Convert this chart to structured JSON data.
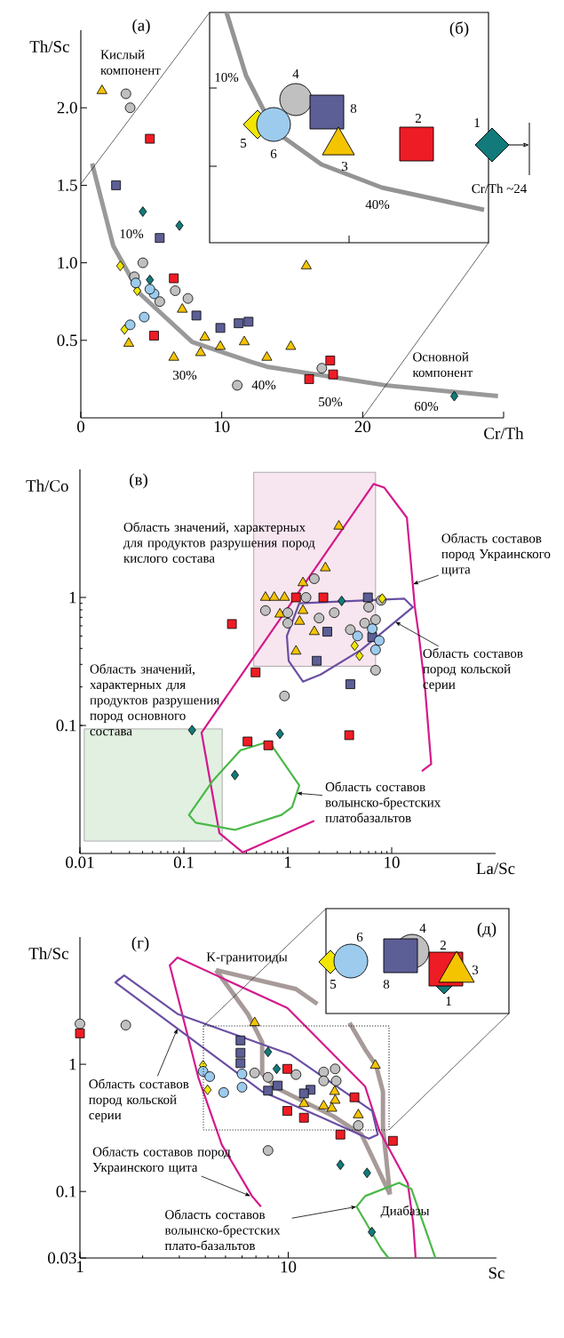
{
  "chart_data": [
    {
      "type": "scatter",
      "title": "(а)",
      "xlabel": "Cr/Th",
      "ylabel": "Th/Sc",
      "xlim": [
        0,
        30
      ],
      "ylim": [
        0,
        2.5
      ],
      "xticks": [
        0,
        10,
        20,
        {
          "value": 30,
          "label": null
        }
      ],
      "yticks": [
        0.5,
        {
          "value": 1,
          "label": "1.0"
        },
        1.5,
        {
          "value": 2,
          "label": "2.0"
        }
      ],
      "series": [
        {
          "type": "line",
          "color": "#999999",
          "x": [
            0.8,
            2.3,
            4.2,
            7.9,
            12.1,
            13.2,
            21.6,
            29.6
          ],
          "values": [
            1.64,
            1.11,
            0.8,
            0.49,
            0.36,
            0.33,
            0.21,
            0.14
          ]
        },
        {
          "marker": "triangle",
          "color": "#f5c400",
          "x": [
            1.5,
            3.4,
            6.6,
            8.5,
            8.8,
            9.9,
            11.6,
            13.2,
            7.2,
            16.0,
            14.9
          ],
          "values": [
            2.11,
            0.48,
            0.39,
            0.42,
            0.52,
            0.46,
            0.49,
            0.39,
            0.7,
            0.98,
            0.46
          ]
        },
        {
          "marker": "circle",
          "color": "#c0c0c0",
          "x": [
            3.2,
            3.5,
            4.4,
            3.8,
            6.7,
            7.6,
            5.6,
            11.1,
            17.1
          ],
          "values": [
            2.09,
            2.0,
            1.0,
            0.91,
            0.82,
            0.77,
            0.75,
            0.21,
            0.32
          ]
        },
        {
          "marker": "square",
          "color": "#ee1c24",
          "x": [
            4.9,
            6.6,
            5.2,
            17.7,
            17.9,
            16.2
          ],
          "values": [
            1.8,
            0.9,
            0.53,
            0.37,
            0.28,
            0.25
          ]
        },
        {
          "marker": "square",
          "color": "#5c5e96",
          "x": [
            2.5,
            5.6,
            8.2,
            9.9,
            11.2,
            11.9
          ],
          "values": [
            1.5,
            1.16,
            0.66,
            0.58,
            0.61,
            0.62
          ]
        },
        {
          "marker": "diamond",
          "color": "#127a7a",
          "x": [
            4.4,
            7.0,
            4.9,
            26.5
          ],
          "values": [
            1.33,
            1.24,
            0.89,
            0.14
          ]
        },
        {
          "marker": "diamond",
          "color": "#f2e600",
          "x": [
            2.8,
            4.0,
            3.1
          ],
          "values": [
            0.98,
            0.82,
            0.57
          ]
        },
        {
          "marker": "circle",
          "color": "#9ccbed",
          "x": [
            3.9,
            5.2,
            4.9,
            4.5,
            3.5
          ],
          "values": [
            0.87,
            0.8,
            0.83,
            0.65,
            0.6
          ]
        }
      ],
      "annotations": [
        "Кислый компонент",
        "Основной компонент",
        "10%",
        "30%",
        "40%",
        "50%",
        "60%"
      ]
    },
    {
      "type": "other",
      "title": "(б)",
      "annotations": [
        "1",
        "2",
        "3",
        "4",
        "5",
        "6",
        "8",
        "10%",
        "40%",
        "Cr/Th ~24"
      ]
    },
    {
      "type": "scatter",
      "title": "(в)",
      "xlabel": "La/Sc",
      "ylabel": "Th/Co",
      "log": "xy",
      "xlim": [
        0.01,
        100
      ],
      "ylim": [
        0.01,
        10
      ],
      "xticks": [
        0.01,
        0.1,
        1,
        10
      ],
      "yticks": [
        0.1,
        1
      ],
      "series": [
        {
          "type": "area",
          "color": "#f7e6ef",
          "x": [
            0.47,
            7.0,
            7.0,
            0.47,
            0.47
          ],
          "values": [
            0.29,
            0.29,
            9.5,
            9.5,
            0.29
          ]
        },
        {
          "type": "area",
          "color": "#e2f0e2",
          "x": [
            0.011,
            0.234,
            0.234,
            0.011,
            0.011
          ],
          "values": [
            0.0125,
            0.0125,
            0.094,
            0.094,
            0.0125
          ]
        },
        {
          "type": "line",
          "color": "#d4198c",
          "x": [
            1.8,
            0.37,
            0.22,
            0.148,
            6.7,
            8.5,
            14,
            16.7,
            18.3,
            21,
            24,
            19.5
          ],
          "values": [
            0.018,
            0.0102,
            0.0144,
            0.088,
            7.7,
            7.2,
            4.2,
            0.84,
            0.5,
            0.19,
            0.05,
            0.044
          ]
        },
        {
          "type": "line",
          "color": "#6a4fa3",
          "x": [
            1.29,
            13.2,
            16,
            5.1,
            2.07,
            1.4,
            1.02,
            0.98,
            1.29,
            1.6
          ],
          "values": [
            0.9,
            0.98,
            0.84,
            0.39,
            0.25,
            0.22,
            0.32,
            0.5,
            0.9,
            0.905
          ]
        },
        {
          "type": "line",
          "color": "#4bb848",
          "x": [
            0.35,
            0.66,
            1.29,
            1.1,
            0.87,
            0.31,
            0.13,
            0.112,
            0.19,
            0.35,
            0.4
          ],
          "values": [
            0.064,
            0.075,
            0.034,
            0.023,
            0.02,
            0.0153,
            0.0174,
            0.02,
            0.037,
            0.064,
            0.066
          ]
        },
        {
          "marker": "triangle",
          "color": "#f5c400",
          "x": [
            3.1,
            2.3,
            1.4,
            0.61,
            0.74,
            0.93,
            1.4,
            1.3,
            1.8,
            1.2,
            0.84
          ],
          "values": [
            3.6,
            1.7,
            1.3,
            1.0,
            1.0,
            1.0,
            0.79,
            0.65,
            0.54,
            0.38,
            0.74
          ]
        },
        {
          "marker": "circle",
          "color": "#c0c0c0",
          "x": [
            1.8,
            1.5,
            0.61,
            1.0,
            1.0,
            2.0,
            2.8,
            4.0,
            6.0,
            7.0,
            7.9,
            7.0,
            0.93,
            5.5
          ],
          "values": [
            1.4,
            1.0,
            0.79,
            0.76,
            0.63,
            0.69,
            0.76,
            0.56,
            0.84,
            0.67,
            0.95,
            0.27,
            0.17,
            0.63
          ]
        },
        {
          "marker": "square",
          "color": "#ee1c24",
          "x": [
            0.29,
            1.2,
            2.2,
            0.49,
            0.41,
            0.65,
            3.9
          ],
          "values": [
            0.62,
            1.0,
            1.0,
            0.26,
            0.075,
            0.07,
            0.084
          ]
        },
        {
          "marker": "square",
          "color": "#5c5e96",
          "x": [
            5.9,
            2.4,
            6.5,
            1.9,
            4.0
          ],
          "values": [
            1.0,
            0.54,
            0.49,
            0.32,
            0.21
          ]
        },
        {
          "marker": "diamond",
          "color": "#127a7a",
          "x": [
            3.3,
            0.12,
            0.84,
            0.31
          ],
          "values": [
            0.94,
            0.092,
            0.086,
            0.041
          ]
        },
        {
          "marker": "diamond",
          "color": "#f2e600",
          "x": [
            8.1,
            4.9,
            4.4
          ],
          "values": [
            0.98,
            0.35,
            0.42
          ]
        },
        {
          "marker": "circle",
          "color": "#9ccbed",
          "x": [
            4.7,
            6.5,
            7.0,
            7.6
          ],
          "values": [
            0.5,
            0.57,
            0.39,
            0.46
          ]
        }
      ],
      "annotations": [
        "Область значений, характерных для продуктов разрушения пород кислого состава",
        "Область значений, характерных для продуктов разрушения пород основного состава",
        {
          "text": "Область составов пород Украинского щита",
          "x": 16,
          "y": 1.27
        },
        {
          "text": "Область составов пород кольской серии",
          "x": 10.8,
          "y": 0.645
        },
        {
          "text": "Область составов волынско-брестских платобазальтов",
          "x": 1.22,
          "y": 0.0296
        }
      ]
    },
    {
      "type": "scatter",
      "title": "(г)",
      "xlabel": "Sc",
      "ylabel": "Th/Sc",
      "log": "xy",
      "xlim": [
        1,
        100
      ],
      "ylim": [
        0.03,
        10
      ],
      "xticks": [
        1,
        10
      ],
      "yticks": [
        0.03,
        0.1,
        1
      ],
      "series": [
        {
          "type": "line",
          "color": "#a79b99",
          "x": [
            4.5,
            10.9,
            13.8
          ],
          "values": [
            5.5,
            3.9,
            2.98
          ]
        },
        {
          "type": "line",
          "color": "#a79b99",
          "x": [
            19.7,
            23.4,
            26.4,
            28.5,
            28.5,
            30.8
          ],
          "values": [
            2.12,
            1.31,
            0.98,
            0.61,
            0.32,
            0.095
          ]
        },
        {
          "type": "line",
          "color": "#a79b99",
          "x": [
            4.5,
            6.4,
            7.5,
            7.5,
            8.8,
            16.5,
            22.5,
            30.8
          ],
          "values": [
            5.5,
            2.49,
            1.49,
            0.84,
            0.65,
            0.39,
            0.28,
            0.095
          ]
        },
        {
          "type": "line",
          "color": "#d4198c",
          "x": [
            7.4,
            6.7,
            4.8,
            3.7,
            2.7,
            2.94,
            9.9,
            23.4,
            27.4,
            37.5,
            39.8,
            40.9
          ],
          "values": [
            0.076,
            0.092,
            0.233,
            0.79,
            6.0,
            6.9,
            2.77,
            0.67,
            0.3,
            0.116,
            0.057,
            0.03
          ]
        },
        {
          "type": "line",
          "color": "#6a4fa3",
          "x": [
            1.48,
            1.63,
            2.94,
            10.3,
            25.3,
            26.9,
            24.4,
            14.1,
            7.5,
            1.48,
            1.55
          ],
          "values": [
            4.4,
            5.0,
            2.49,
            1.19,
            0.43,
            0.28,
            0.26,
            0.39,
            0.61,
            4.4,
            4.7
          ]
        },
        {
          "type": "line",
          "color": "#4bb848",
          "x": [
            30.3,
            28.0,
            21.3,
            23.4,
            34.0,
            39.0,
            50.9
          ],
          "values": [
            0.03,
            0.0354,
            0.076,
            0.092,
            0.117,
            0.105,
            0.03
          ]
        },
        {
          "marker": "circle",
          "color": "#c0c0c0",
          "x": [
            1.0,
            1.66,
            6.9,
            8.0,
            10.9,
            14.8,
            16.8,
            14.8,
            17.0,
            21.7,
            8.0
          ],
          "values": [
            2.08,
            2.03,
            0.855,
            0.79,
            0.83,
            0.87,
            0.92,
            0.74,
            0.74,
            0.33,
            0.21
          ]
        },
        {
          "marker": "square",
          "color": "#ee1c24",
          "x": [
            1.0,
            9.9,
            9.9,
            11.9,
            20.8,
            17.8,
            31.8
          ],
          "values": [
            1.75,
            0.92,
            0.43,
            0.38,
            0.55,
            0.28,
            0.25
          ]
        },
        {
          "marker": "square",
          "color": "#5c5e96",
          "x": [
            5.9,
            5.9,
            5.9,
            8.0,
            8.9,
            12.8,
            11.9
          ],
          "values": [
            1.54,
            1.23,
            1.02,
            0.62,
            0.68,
            0.63,
            0.59
          ]
        },
        {
          "marker": "triangle",
          "color": "#f5c400",
          "x": [
            6.9,
            26.2,
            16.7,
            16.8,
            14.8,
            11.9,
            21.7,
            16.2
          ],
          "values": [
            2.12,
            0.98,
            0.61,
            0.52,
            0.47,
            0.49,
            0.4,
            0.45
          ]
        },
        {
          "marker": "diamond",
          "color": "#127a7a",
          "x": [
            8.0,
            17.8,
            23.9,
            25.2,
            8.8
          ],
          "values": [
            1.25,
            0.162,
            0.14,
            0.048,
            0.92
          ]
        },
        {
          "marker": "diamond",
          "color": "#f2e600",
          "x": [
            4.1,
            3.9
          ],
          "values": [
            0.63,
            0.98
          ]
        },
        {
          "marker": "circle",
          "color": "#9ccbed",
          "x": [
            3.9,
            4.2,
            4.9,
            6.0,
            6.0
          ],
          "values": [
            0.88,
            0.8,
            0.6,
            0.66,
            0.84
          ]
        }
      ],
      "annotations": [
        "K-гранитоиды",
        {
          "text": "Область составов пород кольской серии",
          "x": 2.94,
          "y": 1.91
        },
        {
          "text": "Область составов пород Украинского щита",
          "x": 6.6,
          "y": 0.092
        },
        {
          "text": "Область составов волынско-брестских плато-базальтов",
          "x": 21.3,
          "y": 0.076
        },
        "Диабазы"
      ]
    },
    {
      "type": "other",
      "title": "(д)",
      "annotations": [
        "6",
        "4",
        "2",
        "3",
        "5",
        "8",
        "1"
      ]
    }
  ]
}
